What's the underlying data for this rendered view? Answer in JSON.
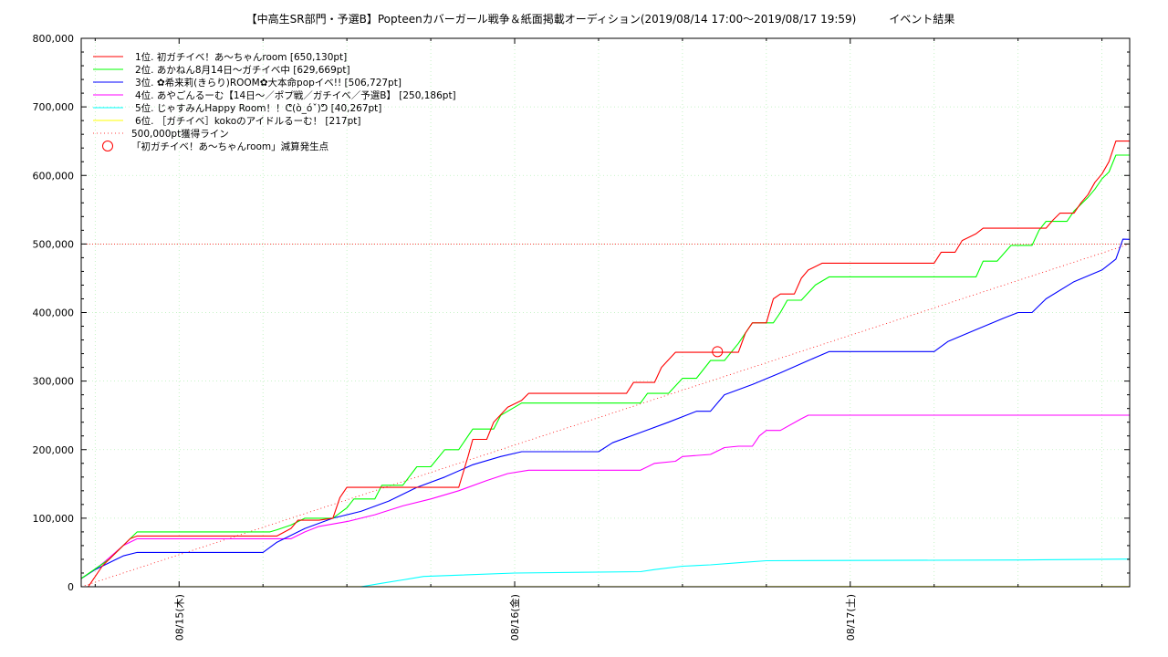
{
  "chart_data": {
    "type": "line",
    "title": "【中高生SR部門・予選B】Popteenカバーガール戦争＆紙面掲載オーディション(2019/08/14 17:00〜2019/08/17 19:59)　　　イベント結果",
    "xlabel": "",
    "ylabel": "",
    "x_axis": {
      "type": "time",
      "range": [
        "2019-08-14T17:00",
        "2019-08-17T19:59"
      ],
      "major_ticks": [
        {
          "t": "2019-08-15T00:00",
          "label": "08/15(木)"
        },
        {
          "t": "2019-08-16T00:00",
          "label": "08/16(金)"
        },
        {
          "t": "2019-08-17T00:00",
          "label": "08/17(土)"
        }
      ],
      "minor_tick_hours": 6
    },
    "y_axis": {
      "range": [
        0,
        800000
      ],
      "tick_labels": [
        "0",
        "100,000",
        "200,000",
        "300,000",
        "400,000",
        "500,000",
        "600,000",
        "700,000",
        "800,000"
      ],
      "minor_step": 20000
    },
    "grid": true,
    "legend_position": "top-left",
    "series": [
      {
        "name": "1位. 初ガチイベ！あ〜ちゃんroom [650,130pt]",
        "color": "#ff0000",
        "points": [
          [
            "2019-08-14T17:30",
            0
          ],
          [
            "2019-08-14T18:30",
            30000
          ],
          [
            "2019-08-14T19:30",
            50000
          ],
          [
            "2019-08-14T20:00",
            60000
          ],
          [
            "2019-08-14T20:30",
            70000
          ],
          [
            "2019-08-14T21:00",
            74000
          ],
          [
            "2019-08-15T07:00",
            74000
          ],
          [
            "2019-08-15T08:00",
            85000
          ],
          [
            "2019-08-15T08:30",
            97000
          ],
          [
            "2019-08-15T10:00",
            97000
          ],
          [
            "2019-08-15T11:00",
            100000
          ],
          [
            "2019-08-15T11:30",
            130000
          ],
          [
            "2019-08-15T12:00",
            145000
          ],
          [
            "2019-08-15T20:00",
            145000
          ],
          [
            "2019-08-15T20:40",
            190000
          ],
          [
            "2019-08-15T21:00",
            215000
          ],
          [
            "2019-08-15T22:00",
            215000
          ],
          [
            "2019-08-15T22:30",
            240000
          ],
          [
            "2019-08-15T23:30",
            262000
          ],
          [
            "2019-08-16T00:30",
            272000
          ],
          [
            "2019-08-16T01:00",
            282000
          ],
          [
            "2019-08-16T08:00",
            282000
          ],
          [
            "2019-08-16T08:30",
            298000
          ],
          [
            "2019-08-16T10:00",
            298000
          ],
          [
            "2019-08-16T10:30",
            320000
          ],
          [
            "2019-08-16T11:30",
            342000
          ],
          [
            "2019-08-16T16:00",
            342000
          ],
          [
            "2019-08-16T16:30",
            370000
          ],
          [
            "2019-08-16T17:00",
            385000
          ],
          [
            "2019-08-16T18:00",
            385000
          ],
          [
            "2019-08-16T18:30",
            420000
          ],
          [
            "2019-08-16T19:00",
            427000
          ],
          [
            "2019-08-16T20:00",
            427000
          ],
          [
            "2019-08-16T20:30",
            450000
          ],
          [
            "2019-08-16T21:00",
            462000
          ],
          [
            "2019-08-16T22:00",
            472000
          ],
          [
            "2019-08-17T06:00",
            472000
          ],
          [
            "2019-08-17T06:30",
            488000
          ],
          [
            "2019-08-17T07:30",
            488000
          ],
          [
            "2019-08-17T08:00",
            505000
          ],
          [
            "2019-08-17T09:00",
            515000
          ],
          [
            "2019-08-17T09:30",
            523000
          ],
          [
            "2019-08-17T14:00",
            523000
          ],
          [
            "2019-08-17T14:30",
            535000
          ],
          [
            "2019-08-17T15:00",
            545000
          ],
          [
            "2019-08-17T16:00",
            545000
          ],
          [
            "2019-08-17T16:30",
            560000
          ],
          [
            "2019-08-17T17:00",
            572000
          ],
          [
            "2019-08-17T17:30",
            590000
          ],
          [
            "2019-08-17T18:00",
            602000
          ],
          [
            "2019-08-17T18:30",
            620000
          ],
          [
            "2019-08-17T19:00",
            650130
          ],
          [
            "2019-08-17T19:59",
            650130
          ]
        ]
      },
      {
        "name": "2位. あかねん8月14日〜ガチイベ中 [629,669pt]",
        "color": "#00ff00",
        "points": [
          [
            "2019-08-14T17:00",
            12000
          ],
          [
            "2019-08-14T18:00",
            26000
          ],
          [
            "2019-08-14T19:00",
            40000
          ],
          [
            "2019-08-14T20:00",
            60000
          ],
          [
            "2019-08-14T21:00",
            80000
          ],
          [
            "2019-08-15T06:30",
            80000
          ],
          [
            "2019-08-15T07:00",
            83000
          ],
          [
            "2019-08-15T08:00",
            90000
          ],
          [
            "2019-08-15T09:00",
            100000
          ],
          [
            "2019-08-15T11:00",
            100000
          ],
          [
            "2019-08-15T12:00",
            115000
          ],
          [
            "2019-08-15T12:30",
            128000
          ],
          [
            "2019-08-15T14:00",
            128000
          ],
          [
            "2019-08-15T14:30",
            148000
          ],
          [
            "2019-08-15T16:00",
            148000
          ],
          [
            "2019-08-15T17:00",
            175000
          ],
          [
            "2019-08-15T18:00",
            175000
          ],
          [
            "2019-08-15T19:00",
            200000
          ],
          [
            "2019-08-15T20:00",
            200000
          ],
          [
            "2019-08-15T21:00",
            230000
          ],
          [
            "2019-08-15T22:30",
            230000
          ],
          [
            "2019-08-15T23:00",
            250000
          ],
          [
            "2019-08-16T00:30",
            268000
          ],
          [
            "2019-08-16T09:00",
            268000
          ],
          [
            "2019-08-16T09:30",
            282000
          ],
          [
            "2019-08-16T11:00",
            282000
          ],
          [
            "2019-08-16T12:00",
            304000
          ],
          [
            "2019-08-16T13:00",
            304000
          ],
          [
            "2019-08-16T14:00",
            330000
          ],
          [
            "2019-08-16T15:00",
            330000
          ],
          [
            "2019-08-16T16:00",
            355000
          ],
          [
            "2019-08-16T17:00",
            385000
          ],
          [
            "2019-08-16T18:30",
            385000
          ],
          [
            "2019-08-16T19:00",
            400000
          ],
          [
            "2019-08-16T19:30",
            418000
          ],
          [
            "2019-08-16T20:30",
            418000
          ],
          [
            "2019-08-16T21:30",
            440000
          ],
          [
            "2019-08-16T22:30",
            452000
          ],
          [
            "2019-08-17T09:00",
            452000
          ],
          [
            "2019-08-17T09:30",
            475000
          ],
          [
            "2019-08-17T10:30",
            475000
          ],
          [
            "2019-08-17T11:30",
            498000
          ],
          [
            "2019-08-17T13:00",
            498000
          ],
          [
            "2019-08-17T13:30",
            520000
          ],
          [
            "2019-08-17T14:00",
            533000
          ],
          [
            "2019-08-17T15:30",
            533000
          ],
          [
            "2019-08-17T16:00",
            548000
          ],
          [
            "2019-08-17T17:00",
            568000
          ],
          [
            "2019-08-17T17:30",
            580000
          ],
          [
            "2019-08-17T18:00",
            595000
          ],
          [
            "2019-08-17T18:30",
            605000
          ],
          [
            "2019-08-17T19:00",
            629669
          ],
          [
            "2019-08-17T19:59",
            629669
          ]
        ]
      },
      {
        "name": "3位. ✿希来莉(きらり)ROOM✿大本命popイベ!! [506,727pt]",
        "color": "#0000ff",
        "points": [
          [
            "2019-08-14T17:00",
            12000
          ],
          [
            "2019-08-14T18:00",
            25000
          ],
          [
            "2019-08-14T19:00",
            35000
          ],
          [
            "2019-08-14T20:00",
            45000
          ],
          [
            "2019-08-14T21:00",
            50000
          ],
          [
            "2019-08-15T06:00",
            50000
          ],
          [
            "2019-08-15T07:00",
            65000
          ],
          [
            "2019-08-15T09:00",
            85000
          ],
          [
            "2019-08-15T11:00",
            100000
          ],
          [
            "2019-08-15T13:00",
            110000
          ],
          [
            "2019-08-15T15:00",
            125000
          ],
          [
            "2019-08-15T17:00",
            145000
          ],
          [
            "2019-08-15T19:00",
            160000
          ],
          [
            "2019-08-15T21:00",
            178000
          ],
          [
            "2019-08-15T23:00",
            190000
          ],
          [
            "2019-08-16T00:30",
            197000
          ],
          [
            "2019-08-16T06:00",
            197000
          ],
          [
            "2019-08-16T07:00",
            210000
          ],
          [
            "2019-08-16T09:00",
            225000
          ],
          [
            "2019-08-16T11:00",
            240000
          ],
          [
            "2019-08-16T13:00",
            256000
          ],
          [
            "2019-08-16T14:00",
            256000
          ],
          [
            "2019-08-16T15:00",
            280000
          ],
          [
            "2019-08-16T17:00",
            295000
          ],
          [
            "2019-08-16T19:00",
            312000
          ],
          [
            "2019-08-16T21:00",
            330000
          ],
          [
            "2019-08-16T22:30",
            343000
          ],
          [
            "2019-08-17T06:00",
            343000
          ],
          [
            "2019-08-17T07:00",
            358000
          ],
          [
            "2019-08-17T09:00",
            375000
          ],
          [
            "2019-08-17T11:00",
            392000
          ],
          [
            "2019-08-17T12:00",
            400000
          ],
          [
            "2019-08-17T13:00",
            400000
          ],
          [
            "2019-08-17T14:00",
            420000
          ],
          [
            "2019-08-17T16:00",
            445000
          ],
          [
            "2019-08-17T18:00",
            462000
          ],
          [
            "2019-08-17T19:00",
            478000
          ],
          [
            "2019-08-17T19:30",
            507000
          ],
          [
            "2019-08-17T19:59",
            506727
          ]
        ]
      },
      {
        "name": "4位. あやごんるーむ【14日〜／ポプ戦／ガチイベ／予選B】 [250,186pt]",
        "color": "#ff00ff",
        "points": [
          [
            "2019-08-14T17:00",
            12000
          ],
          [
            "2019-08-14T18:00",
            25000
          ],
          [
            "2019-08-14T19:00",
            42000
          ],
          [
            "2019-08-14T20:00",
            60000
          ],
          [
            "2019-08-14T21:00",
            70000
          ],
          [
            "2019-08-15T08:00",
            70000
          ],
          [
            "2019-08-15T09:00",
            80000
          ],
          [
            "2019-08-15T10:00",
            88000
          ],
          [
            "2019-08-15T12:00",
            95000
          ],
          [
            "2019-08-15T14:00",
            105000
          ],
          [
            "2019-08-15T16:00",
            118000
          ],
          [
            "2019-08-15T18:00",
            128000
          ],
          [
            "2019-08-15T20:00",
            140000
          ],
          [
            "2019-08-15T22:00",
            155000
          ],
          [
            "2019-08-15T23:30",
            165000
          ],
          [
            "2019-08-16T01:00",
            170000
          ],
          [
            "2019-08-16T09:00",
            170000
          ],
          [
            "2019-08-16T10:00",
            180000
          ],
          [
            "2019-08-16T11:30",
            183000
          ],
          [
            "2019-08-16T12:00",
            190000
          ],
          [
            "2019-08-16T14:00",
            193000
          ],
          [
            "2019-08-16T15:00",
            203000
          ],
          [
            "2019-08-16T16:00",
            205000
          ],
          [
            "2019-08-16T17:00",
            205000
          ],
          [
            "2019-08-16T17:30",
            220000
          ],
          [
            "2019-08-16T18:00",
            228000
          ],
          [
            "2019-08-16T19:00",
            228000
          ],
          [
            "2019-08-16T20:30",
            245000
          ],
          [
            "2019-08-16T21:00",
            250186
          ],
          [
            "2019-08-17T19:59",
            250186
          ]
        ]
      },
      {
        "name": "5位. じゃすみんHappy Room！！ᕦ(ò_óˇ)ᕤ [40,267pt]",
        "color": "#00ffff",
        "points": [
          [
            "2019-08-15T13:00",
            0
          ],
          [
            "2019-08-15T14:30",
            5000
          ],
          [
            "2019-08-15T16:00",
            10000
          ],
          [
            "2019-08-15T17:30",
            15000
          ],
          [
            "2019-08-16T00:00",
            20000
          ],
          [
            "2019-08-16T09:00",
            22000
          ],
          [
            "2019-08-16T10:00",
            25000
          ],
          [
            "2019-08-16T12:00",
            30000
          ],
          [
            "2019-08-16T14:00",
            32000
          ],
          [
            "2019-08-16T16:00",
            35000
          ],
          [
            "2019-08-16T18:00",
            38000
          ],
          [
            "2019-08-17T12:00",
            39000
          ],
          [
            "2019-08-17T19:59",
            40267
          ]
        ]
      },
      {
        "name": "6位. ［ガチイベ］kokoのアイドルるーむ！ [217pt]",
        "color": "#ffff00",
        "points": [
          [
            "2019-08-14T17:00",
            0
          ],
          [
            "2019-08-17T19:59",
            217
          ]
        ]
      }
    ],
    "reference_line": {
      "name": "500,000pt獲得ライン",
      "color": "#ff0000",
      "points": [
        [
          "2019-08-14T17:00",
          0
        ],
        [
          "2019-08-17T19:59",
          500000
        ]
      ]
    },
    "horizontal_line": {
      "y": 500000,
      "color": "#ff0000"
    },
    "event_marker": {
      "name": "「初ガチイベ！あ〜ちゃんroom」減算発生点",
      "color": "#ff0000",
      "point": [
        "2019-08-16T14:30",
        343000
      ]
    }
  }
}
